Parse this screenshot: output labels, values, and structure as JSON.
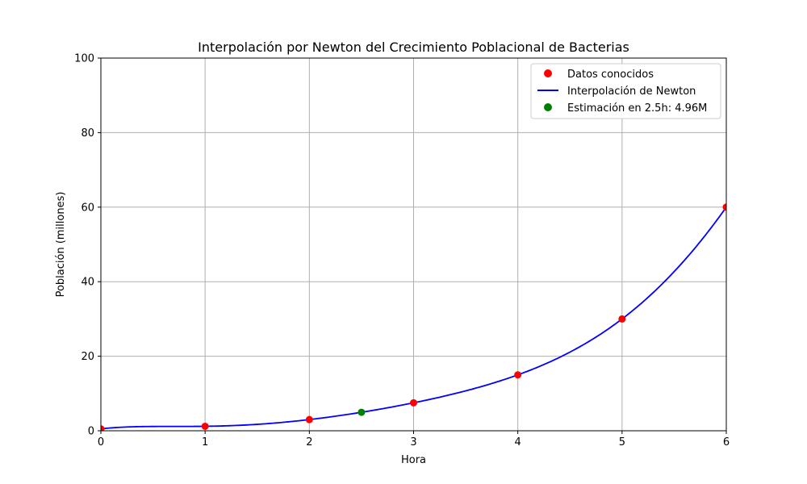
{
  "chart_data": {
    "type": "line",
    "title": "Interpolación por Newton del Crecimiento Poblacional de Bacterias",
    "xlabel": "Hora",
    "ylabel": "Población (millones)",
    "xlim": [
      0,
      6
    ],
    "ylim": [
      0,
      100
    ],
    "xticks": [
      "0",
      "1",
      "2",
      "3",
      "4",
      "5",
      "6"
    ],
    "yticks": [
      "0",
      "20",
      "40",
      "60",
      "80",
      "100"
    ],
    "grid": true,
    "legend_position": "top-right",
    "known_points": {
      "name": "Datos conocidos",
      "color": "#ff0000",
      "x": [
        0,
        1,
        2,
        3,
        4,
        5,
        6
      ],
      "y": [
        0.5,
        1.2,
        3.0,
        7.5,
        15.0,
        30.0,
        60.0
      ]
    },
    "interpolation": {
      "name": "Interpolación de Newton",
      "color": "#0000ff"
    },
    "estimate": {
      "name": "Estimación en 2.5h: 4.96M",
      "color": "#008000",
      "x": 2.5,
      "y": 4.96
    }
  }
}
